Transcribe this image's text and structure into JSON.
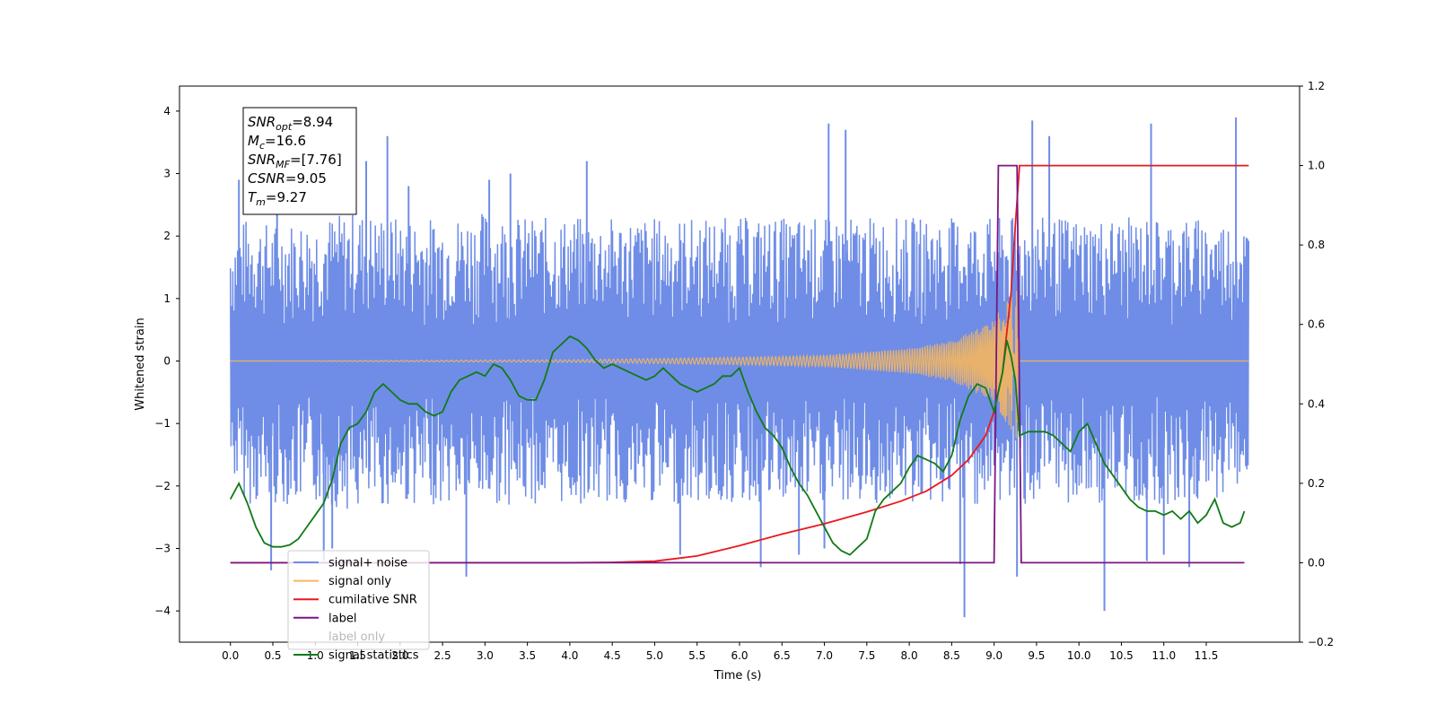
{
  "chart_data": {
    "type": "line",
    "title": "",
    "xlabel": "Time (s)",
    "ylabel": "Whitened strain",
    "y2label": "",
    "xlim": [
      -0.6,
      12.6
    ],
    "ylim": [
      -4.5,
      4.4
    ],
    "y2lim": [
      -0.2,
      1.2
    ],
    "x_ticks": [
      0.0,
      0.5,
      1.0,
      1.5,
      2.0,
      2.5,
      3.0,
      3.5,
      4.0,
      4.5,
      5.0,
      5.5,
      6.0,
      6.5,
      7.0,
      7.5,
      8.0,
      8.5,
      9.0,
      9.5,
      10.0,
      10.5,
      11.0,
      11.5
    ],
    "x_tick_labels": [
      "0.0",
      "0.5",
      "1.0",
      "1.5",
      "2.0",
      "2.5",
      "3.0",
      "3.5",
      "4.0",
      "4.5",
      "5.0",
      "5.5",
      "6.0",
      "6.5",
      "7.0",
      "7.5",
      "8.0",
      "8.5",
      "9.0",
      "9.5",
      "10.0",
      "10.5",
      "11.0",
      "11.5"
    ],
    "y_ticks": [
      -4,
      -3,
      -2,
      -1,
      0,
      1,
      2,
      3,
      4
    ],
    "y_tick_labels": [
      "−4",
      "−3",
      "−2",
      "−1",
      "0",
      "1",
      "2",
      "3",
      "4"
    ],
    "y2_ticks": [
      -0.2,
      0.0,
      0.2,
      0.4,
      0.6,
      0.8,
      1.0,
      1.2
    ],
    "y2_tick_labels": [
      "−0.2",
      "0.0",
      "0.2",
      "0.4",
      "0.6",
      "0.8",
      "1.0",
      "1.2"
    ],
    "grid": false,
    "legend_position": "bottom-left",
    "annotation": {
      "lines": [
        {
          "main": "SNR",
          "sub": "opt",
          "rest": "=8.94"
        },
        {
          "main": "M",
          "sub": "c",
          "rest": "=16.6"
        },
        {
          "main": "SNR",
          "sub": "MF",
          "rest": "=[7.76]"
        },
        {
          "main": "CSNR",
          "sub": "",
          "rest": "=9.05"
        },
        {
          "main": "T",
          "sub": "m",
          "rest": "=9.27"
        }
      ]
    },
    "series": [
      {
        "name": "signal+ noise",
        "axis": "left",
        "color": "#6f8de6",
        "envelope_upper": [
          [
            0.0,
            2.1
          ],
          [
            0.2,
            2.3
          ],
          [
            0.5,
            2.2
          ],
          [
            1.0,
            2.3
          ],
          [
            1.5,
            2.4
          ],
          [
            2.0,
            2.3
          ],
          [
            2.5,
            2.3
          ],
          [
            3.0,
            2.4
          ],
          [
            3.5,
            2.3
          ],
          [
            4.0,
            2.3
          ],
          [
            4.5,
            2.3
          ],
          [
            5.0,
            2.3
          ],
          [
            5.5,
            2.3
          ],
          [
            6.0,
            2.3
          ],
          [
            6.5,
            2.3
          ],
          [
            7.0,
            2.3
          ],
          [
            7.5,
            2.3
          ],
          [
            8.0,
            2.3
          ],
          [
            8.5,
            2.3
          ],
          [
            9.0,
            2.3
          ],
          [
            9.5,
            2.3
          ],
          [
            10.0,
            2.3
          ],
          [
            10.5,
            2.3
          ],
          [
            11.0,
            2.3
          ],
          [
            11.5,
            2.3
          ],
          [
            12.0,
            2.2
          ]
        ],
        "envelope_lower": [
          [
            0.0,
            -1.8
          ],
          [
            0.2,
            -2.3
          ],
          [
            0.5,
            -2.3
          ],
          [
            1.0,
            -2.3
          ],
          [
            1.5,
            -2.4
          ],
          [
            2.0,
            -2.3
          ],
          [
            2.5,
            -2.3
          ],
          [
            3.0,
            -2.3
          ],
          [
            3.5,
            -2.3
          ],
          [
            4.0,
            -2.3
          ],
          [
            4.5,
            -2.3
          ],
          [
            5.0,
            -2.3
          ],
          [
            5.5,
            -2.3
          ],
          [
            6.0,
            -2.3
          ],
          [
            6.5,
            -2.3
          ],
          [
            7.0,
            -2.3
          ],
          [
            7.5,
            -2.3
          ],
          [
            8.0,
            -2.3
          ],
          [
            8.5,
            -2.3
          ],
          [
            9.0,
            -2.3
          ],
          [
            9.5,
            -2.3
          ],
          [
            10.0,
            -2.3
          ],
          [
            10.5,
            -2.3
          ],
          [
            11.0,
            -2.3
          ],
          [
            11.5,
            -2.3
          ],
          [
            12.0,
            -1.9
          ]
        ],
        "spikes": [
          [
            0.1,
            2.9
          ],
          [
            0.48,
            -3.35
          ],
          [
            0.55,
            2.6
          ],
          [
            1.1,
            -3.2
          ],
          [
            1.2,
            -3.0
          ],
          [
            1.6,
            3.2
          ],
          [
            1.85,
            3.6
          ],
          [
            2.1,
            2.8
          ],
          [
            2.78,
            -3.45
          ],
          [
            3.05,
            2.9
          ],
          [
            3.3,
            3.0
          ],
          [
            4.2,
            3.2
          ],
          [
            5.3,
            -3.1
          ],
          [
            6.25,
            -3.3
          ],
          [
            6.7,
            -3.1
          ],
          [
            7.0,
            -3.0
          ],
          [
            7.05,
            3.8
          ],
          [
            7.25,
            3.7
          ],
          [
            8.6,
            -3.25
          ],
          [
            8.65,
            -4.1
          ],
          [
            9.27,
            -3.45
          ],
          [
            9.45,
            3.85
          ],
          [
            9.65,
            3.6
          ],
          [
            10.3,
            -4.0
          ],
          [
            10.8,
            -3.2
          ],
          [
            10.85,
            3.8
          ],
          [
            11.0,
            -3.1
          ],
          [
            11.3,
            -3.3
          ],
          [
            11.85,
            3.9
          ]
        ]
      },
      {
        "name": "signal only",
        "axis": "left",
        "color": "#f5b65e",
        "amplitude": [
          [
            0.0,
            0.0
          ],
          [
            4.0,
            0.02
          ],
          [
            6.0,
            0.06
          ],
          [
            7.0,
            0.09
          ],
          [
            8.0,
            0.2
          ],
          [
            8.5,
            0.32
          ],
          [
            9.0,
            0.65
          ],
          [
            9.1,
            0.9
          ],
          [
            9.2,
            1.1
          ],
          [
            9.27,
            1.3
          ],
          [
            9.3,
            0.0
          ],
          [
            12.0,
            0.0
          ]
        ]
      },
      {
        "name": "cumilative SNR",
        "axis": "right",
        "color": "#e8191f",
        "x": [
          0.0,
          1.0,
          2.0,
          3.0,
          4.0,
          4.5,
          5.0,
          5.5,
          6.0,
          6.5,
          7.0,
          7.5,
          7.9,
          8.2,
          8.5,
          8.7,
          8.9,
          9.0,
          9.1,
          9.2,
          9.25,
          9.3,
          9.5,
          10.0,
          11.0,
          12.0
        ],
        "y": [
          0.0,
          0.0,
          0.0,
          0.0,
          0.0,
          0.001,
          0.004,
          0.017,
          0.043,
          0.072,
          0.098,
          0.128,
          0.155,
          0.18,
          0.22,
          0.26,
          0.32,
          0.38,
          0.48,
          0.68,
          0.85,
          1.0,
          1.0,
          1.0,
          1.0,
          1.0
        ]
      },
      {
        "name": "label",
        "axis": "right",
        "color": "#7b1682",
        "x": [
          0.0,
          9.0,
          9.05,
          9.27,
          9.32,
          11.95
        ],
        "y": [
          0.0,
          0.0,
          1.0,
          1.0,
          0.0,
          0.0
        ]
      },
      {
        "name": "label only",
        "axis": "right",
        "color": "#7b1682",
        "x": [],
        "y": []
      },
      {
        "name": "signal statistics",
        "axis": "right",
        "color": "#117a16",
        "x": [
          0.0,
          0.05,
          0.1,
          0.2,
          0.3,
          0.4,
          0.5,
          0.6,
          0.7,
          0.8,
          0.9,
          1.0,
          1.1,
          1.2,
          1.3,
          1.4,
          1.5,
          1.6,
          1.7,
          1.8,
          1.9,
          2.0,
          2.1,
          2.2,
          2.3,
          2.4,
          2.5,
          2.6,
          2.7,
          2.8,
          2.9,
          3.0,
          3.1,
          3.2,
          3.3,
          3.4,
          3.5,
          3.6,
          3.7,
          3.8,
          3.9,
          4.0,
          4.1,
          4.2,
          4.3,
          4.4,
          4.5,
          4.6,
          4.7,
          4.8,
          4.9,
          5.0,
          5.1,
          5.2,
          5.3,
          5.4,
          5.5,
          5.6,
          5.7,
          5.8,
          5.9,
          6.0,
          6.1,
          6.2,
          6.3,
          6.4,
          6.5,
          6.6,
          6.7,
          6.8,
          6.9,
          7.0,
          7.1,
          7.2,
          7.3,
          7.4,
          7.5,
          7.6,
          7.7,
          7.8,
          7.9,
          8.0,
          8.1,
          8.2,
          8.3,
          8.4,
          8.5,
          8.6,
          8.7,
          8.8,
          8.9,
          9.0,
          9.1,
          9.15,
          9.2,
          9.25,
          9.3,
          9.4,
          9.5,
          9.6,
          9.7,
          9.8,
          9.9,
          10.0,
          10.1,
          10.2,
          10.3,
          10.4,
          10.5,
          10.6,
          10.7,
          10.8,
          10.9,
          11.0,
          11.1,
          11.2,
          11.3,
          11.4,
          11.5,
          11.6,
          11.7,
          11.8,
          11.9,
          11.95
        ],
        "y": [
          0.16,
          0.18,
          0.2,
          0.15,
          0.09,
          0.05,
          0.04,
          0.04,
          0.045,
          0.06,
          0.09,
          0.12,
          0.15,
          0.21,
          0.3,
          0.34,
          0.35,
          0.38,
          0.43,
          0.45,
          0.43,
          0.41,
          0.4,
          0.4,
          0.38,
          0.37,
          0.38,
          0.43,
          0.46,
          0.47,
          0.48,
          0.47,
          0.5,
          0.49,
          0.46,
          0.42,
          0.41,
          0.41,
          0.46,
          0.53,
          0.55,
          0.57,
          0.56,
          0.54,
          0.51,
          0.49,
          0.5,
          0.49,
          0.48,
          0.47,
          0.46,
          0.47,
          0.49,
          0.47,
          0.45,
          0.44,
          0.43,
          0.44,
          0.45,
          0.47,
          0.47,
          0.49,
          0.43,
          0.38,
          0.34,
          0.32,
          0.29,
          0.24,
          0.2,
          0.17,
          0.13,
          0.09,
          0.05,
          0.03,
          0.02,
          0.04,
          0.06,
          0.13,
          0.16,
          0.18,
          0.2,
          0.24,
          0.27,
          0.26,
          0.25,
          0.23,
          0.27,
          0.36,
          0.42,
          0.45,
          0.44,
          0.38,
          0.48,
          0.56,
          0.52,
          0.46,
          0.32,
          0.33,
          0.33,
          0.33,
          0.32,
          0.3,
          0.28,
          0.33,
          0.35,
          0.3,
          0.25,
          0.22,
          0.19,
          0.16,
          0.14,
          0.13,
          0.13,
          0.12,
          0.13,
          0.11,
          0.13,
          0.1,
          0.12,
          0.16,
          0.1,
          0.09,
          0.1,
          0.13
        ]
      }
    ]
  }
}
